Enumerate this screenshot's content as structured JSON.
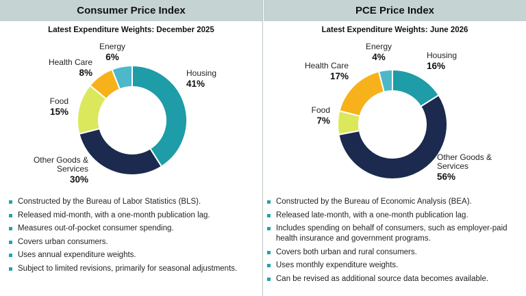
{
  "panels": {
    "cpi": {
      "header": "Consumer Price Index",
      "subtitle": "Latest Expenditure Weights: December 2025",
      "bullets": [
        "Constructed by the Bureau of Labor Statistics (BLS).",
        "Released mid-month, with a one-month publication lag.",
        "Measures out-of-pocket consumer spending.",
        "Covers urban consumers.",
        "Uses annual expenditure weights.",
        "Subject to limited revisions, primarily for seasonal adjustments."
      ]
    },
    "pce": {
      "header": "PCE Price Index",
      "subtitle": "Latest Expenditure Weights: June 2026",
      "bullets": [
        "Constructed by the Bureau of Economic Analysis (BEA).",
        "Released late-month, with a one-month publication lag.",
        "Includes spending on behalf of consumers, such as employer-paid health insurance and government programs.",
        "Covers both urban and rural consumers.",
        "Uses monthly expenditure weights.",
        "Can be revised as additional source data becomes available."
      ]
    }
  },
  "colors": {
    "Housing": "#1e9ca7",
    "Other Goods & Services": "#1b2a4e",
    "Food": "#dce85c",
    "Health Care": "#f7b21b",
    "Energy": "#4cb8c9"
  },
  "chart_data": [
    {
      "type": "pie",
      "title": "Latest Expenditure Weights: December 2025",
      "slices": [
        {
          "name": "Housing",
          "lines": [
            "Housing"
          ],
          "value": 41,
          "label": "41%"
        },
        {
          "name": "Other Goods & Services",
          "lines": [
            "Other Goods &",
            "Services"
          ],
          "value": 30,
          "label": "30%"
        },
        {
          "name": "Food",
          "lines": [
            "Food"
          ],
          "value": 15,
          "label": "15%"
        },
        {
          "name": "Health Care",
          "lines": [
            "Health Care"
          ],
          "value": 8,
          "label": "8%"
        },
        {
          "name": "Energy",
          "lines": [
            "Energy"
          ],
          "value": 6,
          "label": "6%"
        }
      ]
    },
    {
      "type": "pie",
      "title": "Latest Expenditure Weights: June 2026",
      "slices": [
        {
          "name": "Housing",
          "lines": [
            "Housing"
          ],
          "value": 16,
          "label": "16%"
        },
        {
          "name": "Other Goods & Services",
          "lines": [
            "Other Goods &",
            "Services"
          ],
          "value": 56,
          "label": "56%"
        },
        {
          "name": "Food",
          "lines": [
            "Food"
          ],
          "value": 7,
          "label": "7%"
        },
        {
          "name": "Health Care",
          "lines": [
            "Health Care"
          ],
          "value": 17,
          "label": "17%"
        },
        {
          "name": "Energy",
          "lines": [
            "Energy"
          ],
          "value": 4,
          "label": "4%"
        }
      ]
    }
  ]
}
